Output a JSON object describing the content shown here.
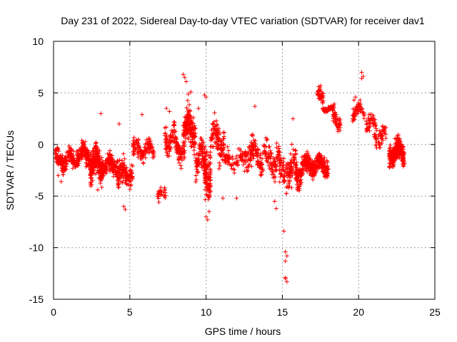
{
  "chart_data": {
    "type": "scatter",
    "title": "Day 231 of 2022, Sidereal Day-to-day VTEC variation (SDTVAR) for receiver dav1",
    "xlabel": "GPS time / hours",
    "ylabel": "SDTVAR / TECUs",
    "xlim": [
      0,
      25
    ],
    "ylim": [
      -15,
      10
    ],
    "xticks": [
      0,
      5,
      10,
      15,
      20,
      25
    ],
    "yticks": [
      -15,
      -10,
      -5,
      0,
      5,
      10
    ],
    "xtick_labels": [
      "0",
      "5",
      "10",
      "15",
      "20",
      "25"
    ],
    "ytick_labels": [
      "-15",
      "-10",
      "-5",
      "0",
      "5",
      "10"
    ],
    "grid": true,
    "marker": "plus",
    "color": "#ff0000",
    "series": [
      {
        "name": "SDTVAR",
        "clusters": [
          {
            "x": [
              0.1,
              1.5
            ],
            "center": -1.5,
            "spread": 1.4,
            "n": 160
          },
          {
            "x": [
              1.5,
              2.5
            ],
            "center": -1.0,
            "spread": 1.6,
            "n": 150
          },
          {
            "x": [
              2.4,
              3.2
            ],
            "center": -2.0,
            "spread": 2.2,
            "n": 220
          },
          {
            "x": [
              3.2,
              4.2
            ],
            "center": -2.0,
            "spread": 1.4,
            "n": 140
          },
          {
            "x": [
              4.2,
              5.2
            ],
            "center": -3.0,
            "spread": 2.2,
            "n": 120
          },
          {
            "x": [
              5.2,
              6.6
            ],
            "center": -0.5,
            "spread": 1.4,
            "n": 110
          },
          {
            "x": [
              6.8,
              7.4
            ],
            "center": -4.8,
            "spread": 0.8,
            "n": 25
          },
          {
            "x": [
              7.3,
              8.0
            ],
            "center": 0.5,
            "spread": 2.0,
            "n": 70
          },
          {
            "x": [
              8.0,
              8.6
            ],
            "center": -0.5,
            "spread": 1.6,
            "n": 70
          },
          {
            "x": [
              8.5,
              9.3
            ],
            "center": 1.5,
            "spread": 3.0,
            "n": 170
          },
          {
            "x": [
              9.3,
              9.9
            ],
            "center": -1.5,
            "spread": 2.4,
            "n": 90
          },
          {
            "x": [
              9.9,
              10.3
            ],
            "center": -2.0,
            "spread": 4.2,
            "n": 120
          },
          {
            "x": [
              10.3,
              11.2
            ],
            "center": 0.5,
            "spread": 2.6,
            "n": 110
          },
          {
            "x": [
              11.2,
              12.5
            ],
            "center": -1.5,
            "spread": 1.4,
            "n": 70
          },
          {
            "x": [
              12.5,
              13.6
            ],
            "center": -1.0,
            "spread": 2.2,
            "n": 110
          },
          {
            "x": [
              13.6,
              14.8
            ],
            "center": -1.5,
            "spread": 2.2,
            "n": 100
          },
          {
            "x": [
              14.8,
              16.3
            ],
            "center": -2.5,
            "spread": 2.6,
            "n": 180
          },
          {
            "x": [
              16.3,
              18.0
            ],
            "center": -2.0,
            "spread": 1.4,
            "n": 300
          },
          {
            "x": [
              17.3,
              17.7
            ],
            "center": 4.5,
            "spread": 1.2,
            "n": 40
          },
          {
            "x": [
              17.6,
              18.4
            ],
            "center": 3.5,
            "spread": 0.4,
            "n": 35
          },
          {
            "x": [
              18.2,
              18.8
            ],
            "center": 2.5,
            "spread": 1.5,
            "n": 55
          },
          {
            "x": [
              19.6,
              20.4
            ],
            "center": 3.2,
            "spread": 1.2,
            "n": 55
          },
          {
            "x": [
              20.5,
              21.2
            ],
            "center": 2.0,
            "spread": 1.2,
            "n": 45
          },
          {
            "x": [
              21.0,
              21.8
            ],
            "center": 0.8,
            "spread": 1.4,
            "n": 55
          },
          {
            "x": [
              22.0,
              23.0
            ],
            "center": -0.8,
            "spread": 1.7,
            "n": 230
          }
        ],
        "points": [
          [
            3.1,
            3.0
          ],
          [
            4.3,
            2.0
          ],
          [
            5.8,
            2.9
          ],
          [
            8.5,
            6.8
          ],
          [
            8.6,
            6.5
          ],
          [
            8.7,
            6.1
          ],
          [
            9.9,
            4.8
          ],
          [
            10.0,
            4.6
          ],
          [
            10.0,
            -7.0
          ],
          [
            10.1,
            -7.3
          ],
          [
            10.2,
            -6.5
          ],
          [
            14.6,
            -6.2
          ],
          [
            15.1,
            -8.4
          ],
          [
            15.2,
            -10.4
          ],
          [
            15.3,
            -10.8
          ],
          [
            15.2,
            -11.3
          ],
          [
            15.2,
            -12.9
          ],
          [
            15.3,
            -13.3
          ],
          [
            15.2,
            -13.0
          ],
          [
            15.4,
            -3.8
          ],
          [
            20.2,
            7.0
          ],
          [
            20.3,
            6.6
          ],
          [
            20.2,
            6.4
          ],
          [
            11.1,
            -5.2
          ],
          [
            12.0,
            -5.2
          ],
          [
            13.2,
            3.7
          ],
          [
            14.5,
            -5.5
          ],
          [
            15.6,
            -4.2
          ],
          [
            4.7,
            -6.3
          ],
          [
            4.6,
            -6.0
          ],
          [
            18.0,
            3.4
          ],
          [
            7.4,
            3.5
          ],
          [
            7.6,
            3.2
          ],
          [
            9.0,
            5.1
          ],
          [
            9.5,
            3.5
          ],
          [
            19.8,
            4.6
          ],
          [
            19.7,
            4.3
          ],
          [
            0.3,
            -3.0
          ],
          [
            0.5,
            -3.6
          ],
          [
            6.9,
            -5.6
          ],
          [
            2.9,
            -4.4
          ],
          [
            15.7,
            2.5
          ]
        ]
      }
    ]
  }
}
